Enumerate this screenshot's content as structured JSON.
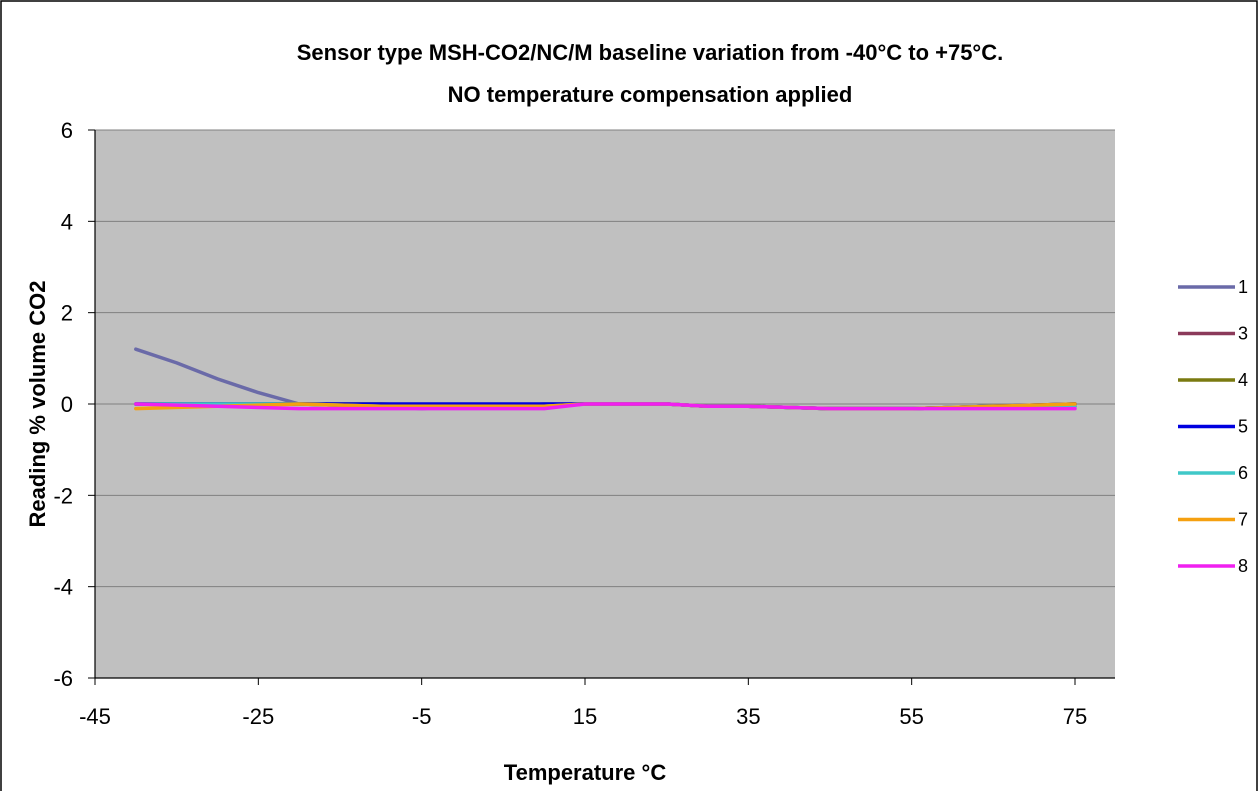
{
  "chart_data": {
    "type": "line",
    "title": "Sensor type MSH-CO2/NC/M baseline variation from -40°C to +75°C.",
    "subtitle": "NO  temperature compensation applied",
    "xlabel": "Temperature °C",
    "ylabel": "Reading % volume CO2",
    "xlim": [
      -45,
      80
    ],
    "ylim": [
      -6,
      6
    ],
    "x_ticks": [
      -45,
      -25,
      -5,
      15,
      35,
      55,
      75
    ],
    "y_ticks": [
      -6,
      -4,
      -2,
      0,
      2,
      4,
      6
    ],
    "grid": true,
    "legend_position": "right",
    "colors": {
      "plot_background": "#c0c0c0",
      "gridline": "#808080"
    },
    "series": [
      {
        "name": "1",
        "color": "#6a6aa8",
        "x": [
          -40,
          -35,
          -30,
          -25,
          -20,
          -10,
          -5,
          0,
          5,
          10,
          15,
          20,
          25,
          30,
          35,
          45,
          55,
          65,
          75
        ],
        "y": [
          1.2,
          0.9,
          0.55,
          0.25,
          0.0,
          -0.05,
          -0.1,
          -0.05,
          -0.05,
          0.0,
          0.0,
          0.0,
          0.0,
          -0.05,
          -0.05,
          -0.1,
          -0.1,
          -0.05,
          0.0
        ]
      },
      {
        "name": "3",
        "color": "#8b3a5a",
        "x": [
          -40,
          -30,
          -20,
          -10,
          0,
          10,
          15,
          25,
          30,
          35,
          45,
          55,
          65,
          75
        ],
        "y": [
          0.0,
          0.0,
          0.0,
          -0.05,
          -0.05,
          -0.05,
          0.0,
          0.0,
          -0.05,
          -0.05,
          -0.1,
          -0.1,
          -0.05,
          -0.05
        ]
      },
      {
        "name": "4",
        "color": "#7a7a10",
        "x": [
          -40,
          -30,
          -20,
          -10,
          0,
          10,
          15,
          25,
          30,
          35,
          45,
          55,
          65,
          75
        ],
        "y": [
          0.0,
          0.0,
          0.0,
          0.0,
          -0.05,
          -0.05,
          0.0,
          0.0,
          -0.05,
          -0.05,
          -0.1,
          -0.1,
          -0.05,
          0.0
        ]
      },
      {
        "name": "5",
        "color": "#0000e0",
        "x": [
          -40,
          -30,
          -20,
          -10,
          0,
          10,
          15,
          25,
          30,
          35,
          45,
          55,
          65,
          75
        ],
        "y": [
          0.0,
          0.0,
          0.0,
          0.0,
          0.0,
          0.0,
          0.0,
          0.0,
          -0.05,
          -0.05,
          -0.1,
          -0.1,
          -0.05,
          0.0
        ]
      },
      {
        "name": "6",
        "color": "#40c8c8",
        "x": [
          -40,
          -30,
          -20,
          -10,
          0,
          10,
          15,
          25,
          30,
          35,
          45,
          55,
          65,
          75
        ],
        "y": [
          0.0,
          0.0,
          0.0,
          -0.05,
          -0.05,
          -0.05,
          0.0,
          0.0,
          -0.05,
          -0.05,
          -0.1,
          -0.1,
          -0.05,
          -0.05
        ]
      },
      {
        "name": "7",
        "color": "#f5a010",
        "x": [
          -40,
          -30,
          -20,
          -10,
          0,
          10,
          15,
          25,
          30,
          35,
          45,
          55,
          65,
          75
        ],
        "y": [
          -0.1,
          -0.05,
          0.0,
          -0.05,
          -0.05,
          -0.05,
          0.0,
          0.0,
          -0.05,
          -0.05,
          -0.1,
          -0.1,
          -0.05,
          0.0
        ]
      },
      {
        "name": "8",
        "color": "#f020f0",
        "x": [
          -40,
          -30,
          -20,
          -10,
          0,
          10,
          15,
          25,
          30,
          35,
          45,
          55,
          65,
          75
        ],
        "y": [
          0.0,
          -0.05,
          -0.1,
          -0.1,
          -0.1,
          -0.1,
          0.0,
          0.0,
          -0.05,
          -0.05,
          -0.1,
          -0.1,
          -0.1,
          -0.1
        ]
      }
    ]
  }
}
